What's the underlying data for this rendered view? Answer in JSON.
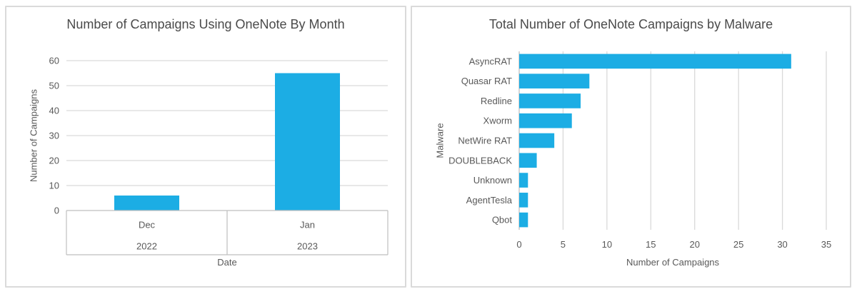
{
  "colors": {
    "bar": "#1CADE4",
    "gridline": "#D9D9D9",
    "axis_line": "#BFBFBF",
    "label_text": "#595959",
    "title_text": "#4A4A4A",
    "card_border": "#DADADA",
    "background": "#FFFFFF"
  },
  "chart_data": [
    {
      "type": "bar",
      "orientation": "vertical",
      "title": "Number of Campaigns Using OneNote By Month",
      "xlabel": "Date",
      "ylabel": "Number of Campaigns",
      "categories": [
        [
          "Dec",
          "2022"
        ],
        [
          "Jan",
          "2023"
        ]
      ],
      "values": [
        6,
        55
      ],
      "ylim": [
        0,
        60
      ],
      "yticks": [
        0,
        10,
        20,
        30,
        40,
        50,
        60
      ],
      "grid": "horizontal gridlines on",
      "legend": "none"
    },
    {
      "type": "bar",
      "orientation": "horizontal",
      "title": "Total Number of OneNote Campaigns by Malware",
      "xlabel": "Number of Campaigns",
      "ylabel": "Malware",
      "categories": [
        "AsyncRAT",
        "Quasar RAT",
        "Redline",
        "Xworm",
        "NetWire RAT",
        "DOUBLEBACK",
        "Unknown",
        "AgentTesla",
        "Qbot"
      ],
      "values": [
        31,
        8,
        7,
        6,
        4,
        2,
        1,
        1,
        1
      ],
      "xlim": [
        0,
        35
      ],
      "xticks": [
        0,
        5,
        10,
        15,
        20,
        25,
        30,
        35
      ],
      "grid": "vertical gridlines on",
      "legend": "none"
    }
  ]
}
